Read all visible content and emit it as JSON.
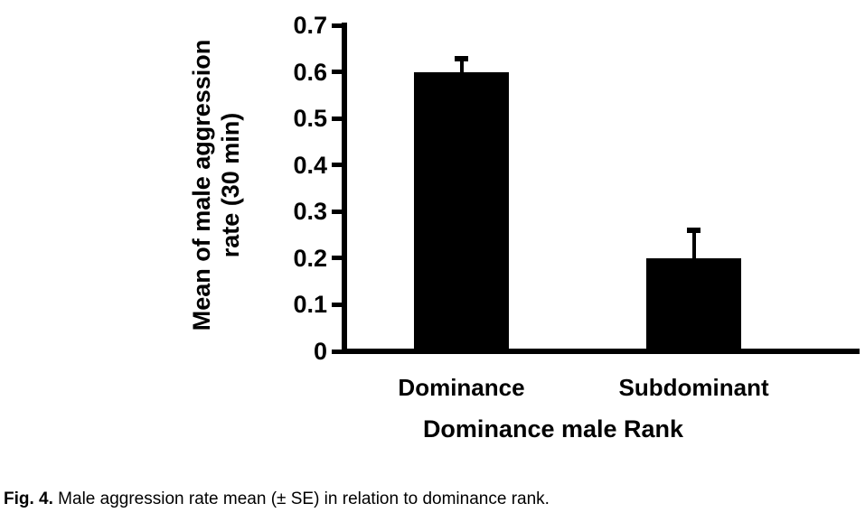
{
  "figure": {
    "caption_label": "Fig. 4.",
    "caption_text": " Male aggression rate mean (± SE) in relation to dominance rank."
  },
  "chart_data": {
    "type": "bar",
    "title": "",
    "categories": [
      "Dominance",
      "Subdominant"
    ],
    "values": [
      0.6,
      0.2
    ],
    "errors": [
      0.035,
      0.065
    ],
    "error_bars": "upper SE only, T-cap",
    "xlabel": "Dominance male Rank",
    "ylabel": "Mean of male aggression rate (30 min)",
    "ylabel_lines": [
      "Mean of male aggression",
      "rate (30 min)"
    ],
    "ylim": [
      0,
      0.7
    ],
    "ytick_step": 0.1,
    "yticks": [
      "0.7",
      "0.6",
      "0.5",
      "0.4",
      "0.3",
      "0.2",
      "0.1",
      "0"
    ],
    "bar_color": "#000000",
    "axis_color": "#000000",
    "background": "#ffffff",
    "grid": false,
    "legend": "none"
  }
}
